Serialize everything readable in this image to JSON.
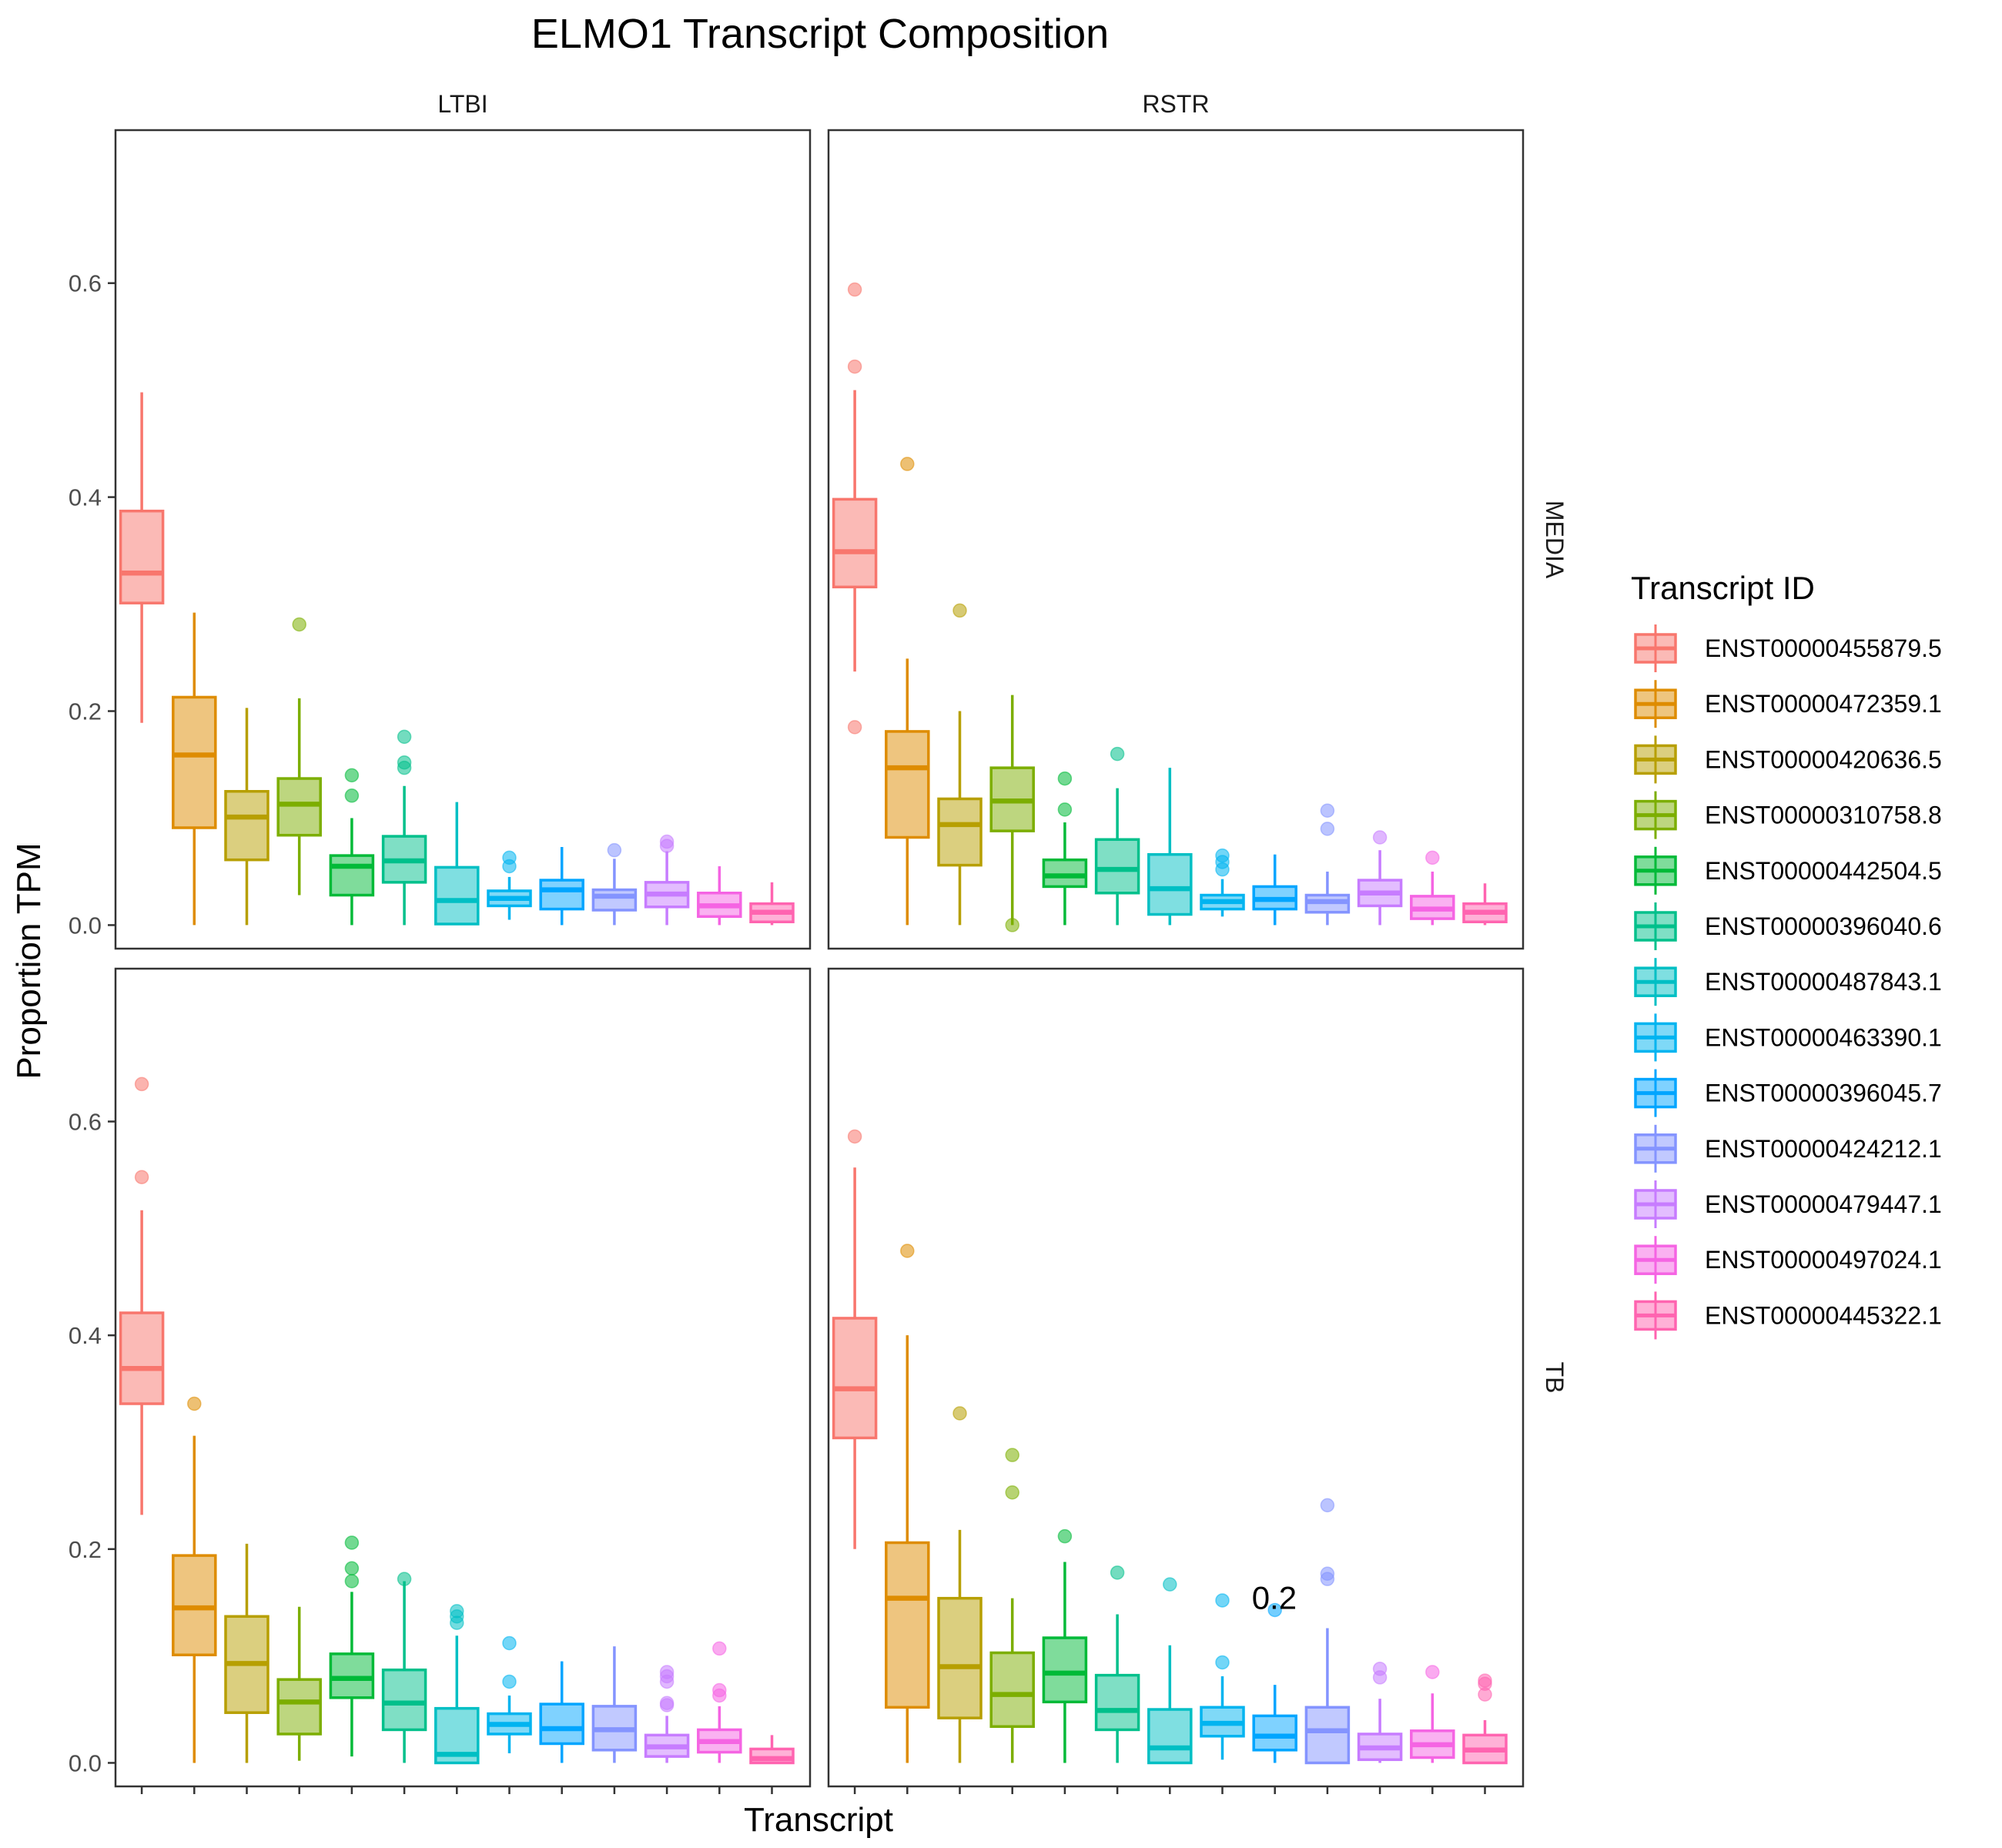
{
  "chart_data": {
    "type": "box",
    "title": "ELMO1 Transcript Composition",
    "xlabel": "Transcript",
    "ylabel": "Proportion TPM",
    "ylim": [
      -0.022,
      0.743
    ],
    "y_ticks": [
      0.0,
      0.2,
      0.4,
      0.6
    ],
    "y_tick_labels": [
      "0.0",
      "0.2",
      "0.4",
      "0.6"
    ],
    "grid": false,
    "column_facets": [
      "LTBI",
      "RSTR"
    ],
    "row_facets": [
      "MEDIA",
      "TB"
    ],
    "legend": {
      "title": "Transcript ID",
      "position": "right",
      "items": [
        {
          "label": "ENST00000455879.5",
          "color": "#F8766D"
        },
        {
          "label": "ENST00000472359.1",
          "color": "#DE8C00"
        },
        {
          "label": "ENST00000420636.5",
          "color": "#B79F00"
        },
        {
          "label": "ENST00000310758.8",
          "color": "#7CAE00"
        },
        {
          "label": "ENST00000442504.5",
          "color": "#00BA38"
        },
        {
          "label": "ENST00000396040.6",
          "color": "#00C08B"
        },
        {
          "label": "ENST00000487843.1",
          "color": "#00BFC4"
        },
        {
          "label": "ENST00000463390.1",
          "color": "#00B4F0"
        },
        {
          "label": "ENST00000396045.7",
          "color": "#00A5FF"
        },
        {
          "label": "ENST00000424212.1",
          "color": "#8494FF"
        },
        {
          "label": "ENST00000479447.1",
          "color": "#C77CFF"
        },
        {
          "label": "ENST00000497024.1",
          "color": "#F564E3"
        },
        {
          "label": "ENST00000445322.1",
          "color": "#FF64B0"
        }
      ]
    },
    "panels": [
      {
        "column": "LTBI",
        "row": "MEDIA",
        "boxes": [
          {
            "q1": 0.301,
            "median": 0.329,
            "q3": 0.387,
            "lower": 0.189,
            "upper": 0.498,
            "outliers": []
          },
          {
            "q1": 0.091,
            "median": 0.159,
            "q3": 0.213,
            "lower": 0.0,
            "upper": 0.292,
            "outliers": []
          },
          {
            "q1": 0.061,
            "median": 0.101,
            "q3": 0.125,
            "lower": 0.0,
            "upper": 0.203,
            "outliers": []
          },
          {
            "q1": 0.084,
            "median": 0.113,
            "q3": 0.137,
            "lower": 0.028,
            "upper": 0.212,
            "outliers": [
              0.281
            ]
          },
          {
            "q1": 0.028,
            "median": 0.055,
            "q3": 0.065,
            "lower": 0.0,
            "upper": 0.1,
            "outliers": [
              0.14,
              0.121
            ]
          },
          {
            "q1": 0.04,
            "median": 0.06,
            "q3": 0.083,
            "lower": 0.0,
            "upper": 0.13,
            "outliers": [
              0.176,
              0.152,
              0.147
            ]
          },
          {
            "q1": 0.001,
            "median": 0.023,
            "q3": 0.054,
            "lower": 0.0,
            "upper": 0.115,
            "outliers": []
          },
          {
            "q1": 0.018,
            "median": 0.025,
            "q3": 0.032,
            "lower": 0.005,
            "upper": 0.045,
            "outliers": [
              0.063,
              0.055
            ]
          },
          {
            "q1": 0.015,
            "median": 0.033,
            "q3": 0.042,
            "lower": 0.0,
            "upper": 0.073,
            "outliers": []
          },
          {
            "q1": 0.014,
            "median": 0.027,
            "q3": 0.033,
            "lower": 0.0,
            "upper": 0.062,
            "outliers": [
              0.07
            ]
          },
          {
            "q1": 0.017,
            "median": 0.029,
            "q3": 0.04,
            "lower": 0.0,
            "upper": 0.069,
            "outliers": [
              0.078,
              0.074
            ]
          },
          {
            "q1": 0.008,
            "median": 0.018,
            "q3": 0.03,
            "lower": 0.0,
            "upper": 0.055,
            "outliers": []
          },
          {
            "q1": 0.003,
            "median": 0.012,
            "q3": 0.02,
            "lower": 0.0,
            "upper": 0.04,
            "outliers": []
          }
        ],
        "annotations": []
      },
      {
        "column": "RSTR",
        "row": "MEDIA",
        "boxes": [
          {
            "q1": 0.316,
            "median": 0.349,
            "q3": 0.398,
            "lower": 0.237,
            "upper": 0.5,
            "outliers": [
              0.594,
              0.522,
              0.185
            ]
          },
          {
            "q1": 0.082,
            "median": 0.147,
            "q3": 0.181,
            "lower": 0.0,
            "upper": 0.249,
            "outliers": [
              0.431
            ]
          },
          {
            "q1": 0.056,
            "median": 0.094,
            "q3": 0.118,
            "lower": 0.0,
            "upper": 0.2,
            "outliers": [
              0.294
            ]
          },
          {
            "q1": 0.088,
            "median": 0.116,
            "q3": 0.147,
            "lower": 0.0,
            "upper": 0.215,
            "outliers": [
              0.0
            ]
          },
          {
            "q1": 0.036,
            "median": 0.046,
            "q3": 0.061,
            "lower": 0.0,
            "upper": 0.096,
            "outliers": [
              0.137,
              0.108
            ]
          },
          {
            "q1": 0.03,
            "median": 0.052,
            "q3": 0.08,
            "lower": 0.0,
            "upper": 0.128,
            "outliers": [
              0.16
            ]
          },
          {
            "q1": 0.01,
            "median": 0.034,
            "q3": 0.066,
            "lower": 0.0,
            "upper": 0.147,
            "outliers": []
          },
          {
            "q1": 0.015,
            "median": 0.022,
            "q3": 0.028,
            "lower": 0.008,
            "upper": 0.043,
            "outliers": [
              0.065,
              0.059,
              0.052
            ]
          },
          {
            "q1": 0.015,
            "median": 0.024,
            "q3": 0.036,
            "lower": 0.0,
            "upper": 0.066,
            "outliers": []
          },
          {
            "q1": 0.012,
            "median": 0.022,
            "q3": 0.028,
            "lower": 0.0,
            "upper": 0.05,
            "outliers": [
              0.107,
              0.09
            ]
          },
          {
            "q1": 0.018,
            "median": 0.03,
            "q3": 0.042,
            "lower": 0.0,
            "upper": 0.07,
            "outliers": [
              0.082
            ]
          },
          {
            "q1": 0.006,
            "median": 0.015,
            "q3": 0.027,
            "lower": 0.0,
            "upper": 0.05,
            "outliers": [
              0.063
            ]
          },
          {
            "q1": 0.003,
            "median": 0.012,
            "q3": 0.02,
            "lower": 0.0,
            "upper": 0.039,
            "outliers": []
          }
        ],
        "annotations": []
      },
      {
        "column": "LTBI",
        "row": "TB",
        "boxes": [
          {
            "q1": 0.336,
            "median": 0.369,
            "q3": 0.421,
            "lower": 0.232,
            "upper": 0.517,
            "outliers": [
              0.635,
              0.548
            ]
          },
          {
            "q1": 0.101,
            "median": 0.145,
            "q3": 0.194,
            "lower": 0.0,
            "upper": 0.306,
            "outliers": [
              0.336
            ]
          },
          {
            "q1": 0.047,
            "median": 0.093,
            "q3": 0.137,
            "lower": 0.0,
            "upper": 0.205,
            "outliers": []
          },
          {
            "q1": 0.027,
            "median": 0.057,
            "q3": 0.078,
            "lower": 0.002,
            "upper": 0.146,
            "outliers": []
          },
          {
            "q1": 0.061,
            "median": 0.079,
            "q3": 0.102,
            "lower": 0.006,
            "upper": 0.16,
            "outliers": [
              0.206,
              0.182,
              0.17
            ]
          },
          {
            "q1": 0.031,
            "median": 0.056,
            "q3": 0.087,
            "lower": 0.0,
            "upper": 0.17,
            "outliers": [
              0.172
            ]
          },
          {
            "q1": 0.0,
            "median": 0.008,
            "q3": 0.051,
            "lower": 0.0,
            "upper": 0.119,
            "outliers": [
              0.142,
              0.137,
              0.131
            ]
          },
          {
            "q1": 0.027,
            "median": 0.036,
            "q3": 0.046,
            "lower": 0.009,
            "upper": 0.063,
            "outliers": [
              0.112,
              0.076
            ]
          },
          {
            "q1": 0.018,
            "median": 0.032,
            "q3": 0.055,
            "lower": 0.0,
            "upper": 0.095,
            "outliers": []
          },
          {
            "q1": 0.012,
            "median": 0.031,
            "q3": 0.053,
            "lower": 0.0,
            "upper": 0.109,
            "outliers": []
          },
          {
            "q1": 0.006,
            "median": 0.015,
            "q3": 0.026,
            "lower": 0.0,
            "upper": 0.044,
            "outliers": [
              0.085,
              0.081,
              0.076,
              0.056,
              0.054
            ]
          },
          {
            "q1": 0.01,
            "median": 0.02,
            "q3": 0.031,
            "lower": 0.0,
            "upper": 0.053,
            "outliers": [
              0.107,
              0.068,
              0.063
            ]
          },
          {
            "q1": 0.0,
            "median": 0.004,
            "q3": 0.013,
            "lower": 0.0,
            "upper": 0.026,
            "outliers": []
          }
        ],
        "annotations": []
      },
      {
        "column": "RSTR",
        "row": "TB",
        "boxes": [
          {
            "q1": 0.304,
            "median": 0.35,
            "q3": 0.416,
            "lower": 0.2,
            "upper": 0.557,
            "outliers": [
              0.586
            ]
          },
          {
            "q1": 0.052,
            "median": 0.154,
            "q3": 0.206,
            "lower": 0.0,
            "upper": 0.4,
            "outliers": [
              0.479
            ]
          },
          {
            "q1": 0.042,
            "median": 0.09,
            "q3": 0.154,
            "lower": 0.0,
            "upper": 0.218,
            "outliers": [
              0.327
            ]
          },
          {
            "q1": 0.034,
            "median": 0.064,
            "q3": 0.103,
            "lower": 0.0,
            "upper": 0.154,
            "outliers": [
              0.288,
              0.253
            ]
          },
          {
            "q1": 0.057,
            "median": 0.084,
            "q3": 0.117,
            "lower": 0.0,
            "upper": 0.188,
            "outliers": [
              0.212
            ]
          },
          {
            "q1": 0.031,
            "median": 0.049,
            "q3": 0.082,
            "lower": 0.0,
            "upper": 0.139,
            "outliers": [
              0.178
            ]
          },
          {
            "q1": 0.0,
            "median": 0.014,
            "q3": 0.05,
            "lower": 0.0,
            "upper": 0.11,
            "outliers": [
              0.167
            ]
          },
          {
            "q1": 0.025,
            "median": 0.037,
            "q3": 0.052,
            "lower": 0.003,
            "upper": 0.081,
            "outliers": [
              0.152,
              0.094
            ]
          },
          {
            "q1": 0.012,
            "median": 0.025,
            "q3": 0.044,
            "lower": 0.0,
            "upper": 0.073,
            "outliers": [
              0.143
            ]
          },
          {
            "q1": 0.0,
            "median": 0.03,
            "q3": 0.052,
            "lower": 0.0,
            "upper": 0.126,
            "outliers": [
              0.241,
              0.177,
              0.172
            ]
          },
          {
            "q1": 0.003,
            "median": 0.014,
            "q3": 0.027,
            "lower": 0.0,
            "upper": 0.06,
            "outliers": [
              0.088,
              0.08
            ]
          },
          {
            "q1": 0.005,
            "median": 0.017,
            "q3": 0.03,
            "lower": 0.0,
            "upper": 0.065,
            "outliers": [
              0.085
            ]
          },
          {
            "q1": 0.0,
            "median": 0.012,
            "q3": 0.026,
            "lower": 0.0,
            "upper": 0.04,
            "outliers": [
              0.077,
              0.074,
              0.064
            ]
          }
        ],
        "annotations": [
          {
            "text": "0.2",
            "x_index": 8,
            "y": 0.155
          }
        ]
      }
    ]
  }
}
